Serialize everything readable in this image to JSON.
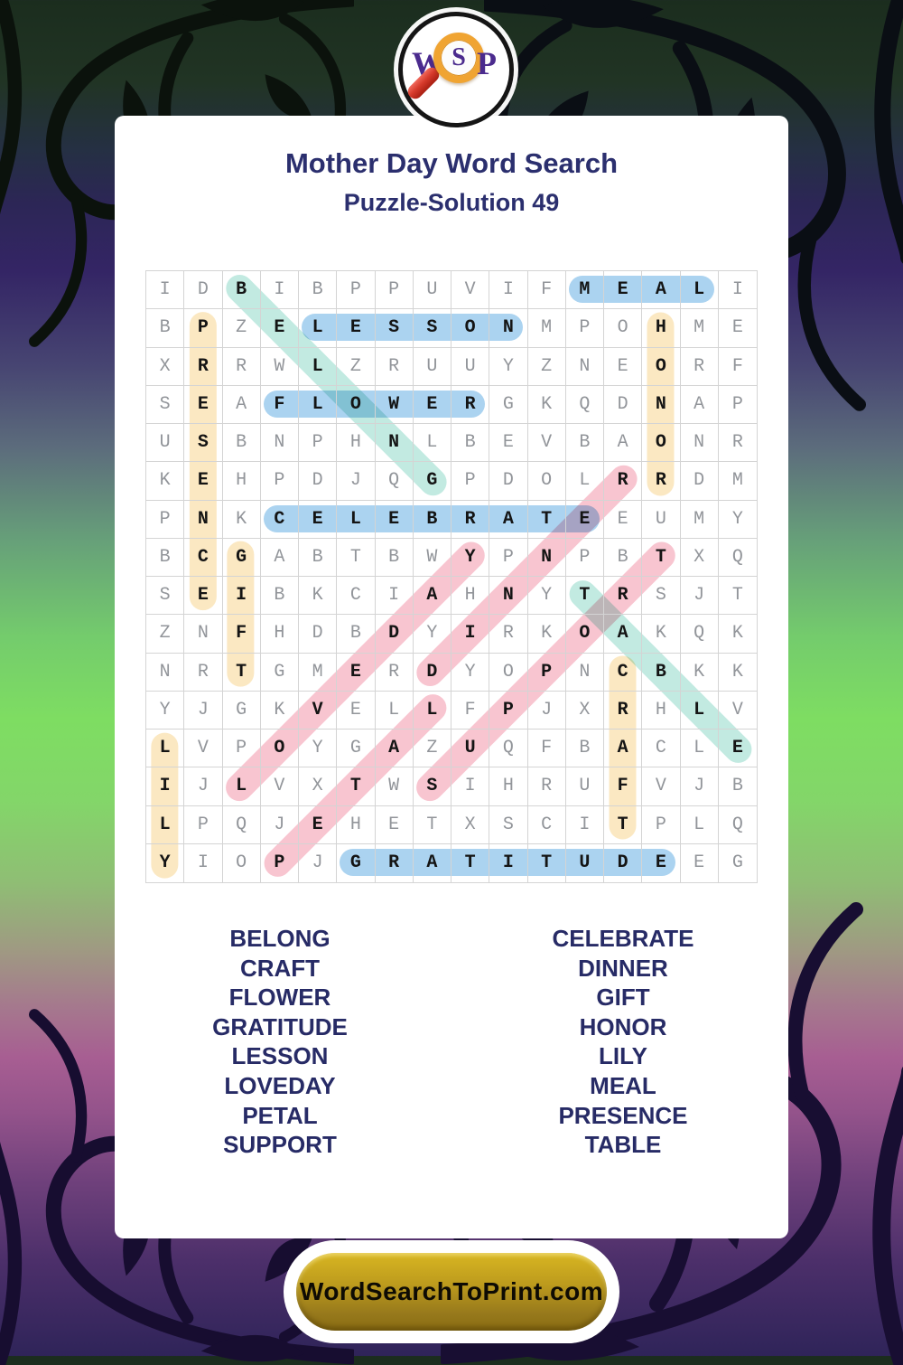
{
  "logo": {
    "letter_w": "W",
    "letter_s": "S",
    "letter_p": "P"
  },
  "header": {
    "title": "Mother Day Word Search",
    "subtitle": "Puzzle-Solution 49"
  },
  "palette": {
    "blue": "#abd3f0",
    "yellow": "#fbe8c2",
    "teal": "#c2eae1",
    "pink": "#f8c5d0",
    "navy_text": "#2b2f6e",
    "gold_button": "#bd9b1d"
  },
  "grid": {
    "size": 16,
    "rows": [
      "IDBIBPPUVIFMEALI",
      "BPZELESSONMPOHME",
      "XRRWLZRUUYZNEORF",
      "SEAFLOWERGKQDNAP",
      "USBNPHNLBEVBAONR",
      "KEHPDJQGPDOLRRDM",
      "PNKCELEBRATEEUMY",
      "BCGABTBWYPNPBTXQ",
      "SEIBKCIAHNYTRSJT",
      "ZNFHDBDYIRKOAKQK",
      "NRTGMERDYOPNCBKK",
      "YJGKVELLFPJXRHLV",
      "LVPOYGAZUQFBACLE",
      "IJLVXTWSIHRUFVJB",
      "LPQJEHETXSCITPLQ",
      "YIOPJGRATITUDEEG"
    ]
  },
  "solutions": [
    {
      "word": "MEAL",
      "row": 1,
      "col": 12,
      "dir": "H",
      "color": "blue"
    },
    {
      "word": "LESSON",
      "row": 2,
      "col": 5,
      "dir": "H",
      "color": "blue"
    },
    {
      "word": "FLOWER",
      "row": 4,
      "col": 4,
      "dir": "H",
      "color": "blue"
    },
    {
      "word": "CELEBRATE",
      "row": 7,
      "col": 4,
      "dir": "H",
      "color": "blue"
    },
    {
      "word": "GRATITUDE",
      "row": 16,
      "col": 6,
      "dir": "H",
      "color": "blue"
    },
    {
      "word": "PRESENCE",
      "row": 2,
      "col": 2,
      "dir": "V",
      "color": "yellow"
    },
    {
      "word": "HONOR",
      "row": 2,
      "col": 14,
      "dir": "V",
      "color": "yellow"
    },
    {
      "word": "GIFT",
      "row": 8,
      "col": 3,
      "dir": "V",
      "color": "yellow"
    },
    {
      "word": "CRAFT",
      "row": 11,
      "col": 13,
      "dir": "V",
      "color": "yellow"
    },
    {
      "word": "LILY",
      "row": 13,
      "col": 1,
      "dir": "V",
      "color": "yellow"
    },
    {
      "word": "BELONG",
      "row": 1,
      "col": 3,
      "dir": "DR",
      "color": "teal"
    },
    {
      "word": "TABLE",
      "row": 9,
      "col": 12,
      "dir": "DR",
      "color": "teal"
    },
    {
      "word": "DINNER",
      "row": 11,
      "col": 8,
      "dir": "UR",
      "color": "pink"
    },
    {
      "word": "SUPPORT",
      "row": 14,
      "col": 8,
      "dir": "UR",
      "color": "pink"
    },
    {
      "word": "LOVEDAY",
      "row": 14,
      "col": 3,
      "dir": "UR",
      "color": "pink"
    },
    {
      "word": "PETAL",
      "row": 16,
      "col": 4,
      "dir": "UR",
      "color": "pink"
    }
  ],
  "word_list": {
    "left": [
      "BELONG",
      "CRAFT",
      "FLOWER",
      "GRATITUDE",
      "LESSON",
      "LOVEDAY",
      "PETAL",
      "SUPPORT"
    ],
    "right": [
      "CELEBRATE",
      "DINNER",
      "GIFT",
      "HONOR",
      "LILY",
      "MEAL",
      "PRESENCE",
      "TABLE"
    ]
  },
  "footer": {
    "button_label": "WordSearchToPrint.com"
  }
}
